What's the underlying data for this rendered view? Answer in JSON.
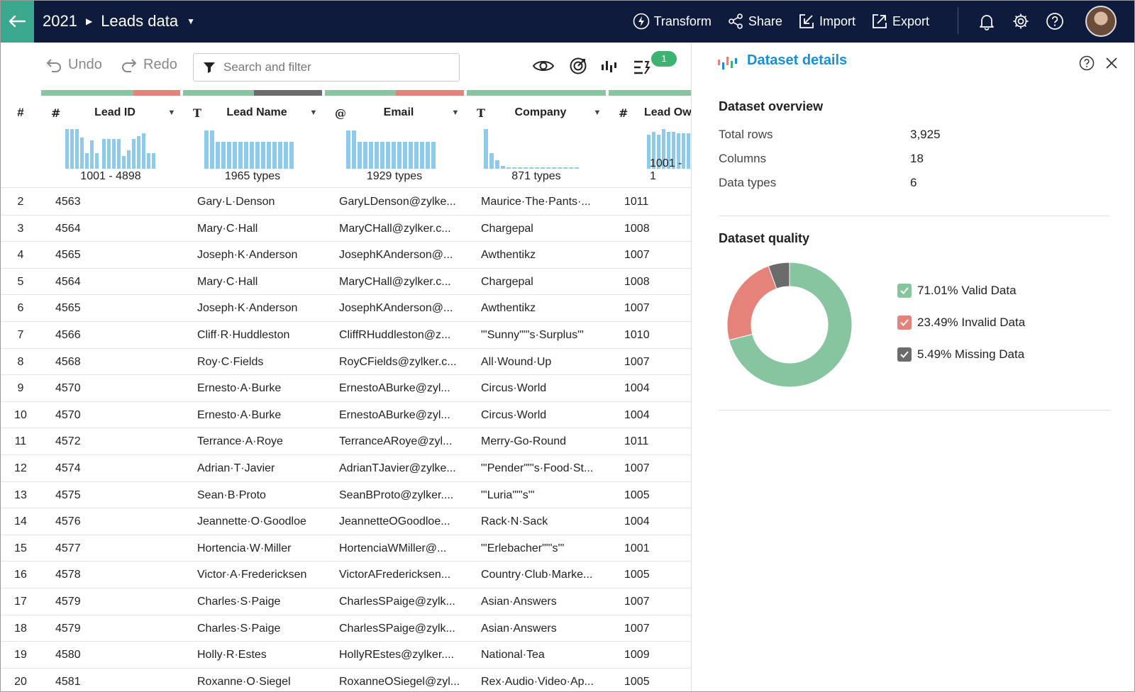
{
  "header": {
    "breadcrumb_year": "2021",
    "dataset_name": "Leads data",
    "actions": [
      {
        "label": "Transform",
        "icon": "lightning-icon"
      },
      {
        "label": "Share",
        "icon": "share-icon"
      },
      {
        "label": "Import",
        "icon": "import-icon"
      },
      {
        "label": "Export",
        "icon": "export-icon"
      }
    ]
  },
  "toolbar": {
    "undo_label": "Undo",
    "redo_label": "Redo",
    "search_placeholder": "Search and filter",
    "badge_count": "1"
  },
  "grid": {
    "rownum_header": "#",
    "columns": [
      {
        "type_icon": "#",
        "name": "Lead ID",
        "summary": "1001 - 4898"
      },
      {
        "type_icon": "T",
        "name": "Lead Name",
        "summary": "1965 types"
      },
      {
        "type_icon": "@",
        "name": "Email",
        "summary": "1929 types"
      },
      {
        "type_icon": "T",
        "name": "Company",
        "summary": "871 types"
      },
      {
        "type_icon": "#",
        "name": "Lead Ow",
        "summary": "1001 - 1"
      }
    ],
    "rows": [
      {
        "n": "2",
        "id": "4563",
        "name": "Gary·L·Denson",
        "email": "GaryLDenson@zylke...",
        "company": "Maurice·The·Pants·...",
        "owner": "1011"
      },
      {
        "n": "3",
        "id": "4564",
        "name": "Mary·C·Hall",
        "email": "MaryCHall@zylker.c...",
        "company": "Chargepal",
        "owner": "1008"
      },
      {
        "n": "4",
        "id": "4565",
        "name": "Joseph·K·Anderson",
        "email": "JosephKAnderson@...",
        "company": "Awthentikz",
        "owner": "1007"
      },
      {
        "n": "5",
        "id": "4564",
        "name": "Mary·C·Hall",
        "email": "MaryCHall@zylker.c...",
        "company": "Chargepal",
        "owner": "1008"
      },
      {
        "n": "6",
        "id": "4565",
        "name": "Joseph·K·Anderson",
        "email": "JosephKAnderson@...",
        "company": "Awthentikz",
        "owner": "1007"
      },
      {
        "n": "7",
        "id": "4566",
        "name": "Cliff·R·Huddleston",
        "email": "CliffRHuddleston@z...",
        "company": "\"'Sunny\"\"'s·Surplus'\"",
        "owner": "1010"
      },
      {
        "n": "8",
        "id": "4568",
        "name": "Roy·C·Fields",
        "email": "RoyCFields@zylker.c...",
        "company": "All·Wound·Up",
        "owner": "1007"
      },
      {
        "n": "9",
        "id": "4570",
        "name": "Ernesto·A·Burke",
        "email": "ErnestoABurke@zyl...",
        "company": "Circus·World",
        "owner": "1004"
      },
      {
        "n": "10",
        "id": "4570",
        "name": "Ernesto·A·Burke",
        "email": "ErnestoABurke@zyl...",
        "company": "Circus·World",
        "owner": "1004"
      },
      {
        "n": "11",
        "id": "4572",
        "name": "Terrance·A·Roye",
        "email": "TerranceARoye@zyl...",
        "company": "Merry-Go-Round",
        "owner": "1011"
      },
      {
        "n": "12",
        "id": "4574",
        "name": "Adrian·T·Javier",
        "email": "AdrianTJavier@zylke...",
        "company": "\"'Pender\"\"'s·Food·St...",
        "owner": "1007"
      },
      {
        "n": "13",
        "id": "4575",
        "name": "Sean·B·Proto",
        "email": "SeanBProto@zylker....",
        "company": "\"'Luria\"\"'s'\"",
        "owner": "1005"
      },
      {
        "n": "14",
        "id": "4576",
        "name": "Jeannette·O·Goodloe",
        "email": "JeannetteOGoodloe...",
        "company": "Rack·N·Sack",
        "owner": "1004"
      },
      {
        "n": "15",
        "id": "4577",
        "name": "Hortencia·W·Miller",
        "email": "HortenciaWMiller@...",
        "company": "\"'Erlebacher\"\"'s'\"",
        "owner": "1001"
      },
      {
        "n": "16",
        "id": "4578",
        "name": "Victor·A·Fredericksen",
        "email": "VictorAFredericksen...",
        "company": "Country·Club·Marke...",
        "owner": "1005"
      },
      {
        "n": "17",
        "id": "4579",
        "name": "Charles·S·Paige",
        "email": "CharlesSPaige@zylk...",
        "company": "Asian·Answers",
        "owner": "1007"
      },
      {
        "n": "18",
        "id": "4579",
        "name": "Charles·S·Paige",
        "email": "CharlesSPaige@zylk...",
        "company": "Asian·Answers",
        "owner": "1007"
      },
      {
        "n": "19",
        "id": "4580",
        "name": "Holly·R·Estes",
        "email": "HollyREstes@zylker....",
        "company": "National·Tea",
        "owner": "1009"
      },
      {
        "n": "20",
        "id": "4581",
        "name": "Roxanne·O·Siegel",
        "email": "RoxanneOSiegel@zyl...",
        "company": "Rex·Audio·Video·Ap...",
        "owner": "1005"
      }
    ]
  },
  "panel": {
    "title": "Dataset details",
    "overview_title": "Dataset overview",
    "overview": [
      {
        "label": "Total rows",
        "value": "3,925"
      },
      {
        "label": "Columns",
        "value": "18"
      },
      {
        "label": "Data types",
        "value": "6"
      }
    ],
    "quality_title": "Dataset quality",
    "quality": [
      {
        "label": "71.01% Valid Data",
        "pct": 71.01,
        "color": "#86c5a0"
      },
      {
        "label": "23.49% Invalid Data",
        "pct": 23.49,
        "color": "#e5837a"
      },
      {
        "label": "5.49% Missing Data",
        "pct": 5.49,
        "color": "#6b6b6b"
      }
    ]
  },
  "colors": {
    "topbar": "#0f1b3d",
    "accent_green": "#3aa88c",
    "link_blue": "#1a8fd6",
    "hist_bar": "#8ecbea"
  }
}
